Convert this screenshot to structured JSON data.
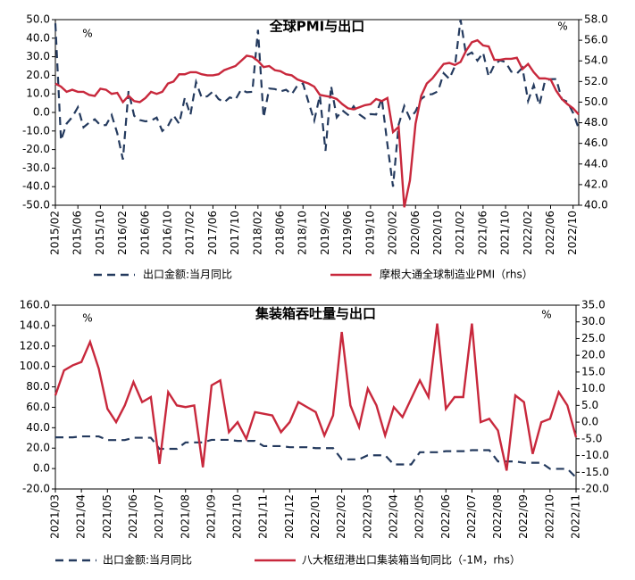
{
  "chart_data": [
    {
      "type": "line",
      "title": "全球PMI与出口",
      "annotations": [
        "%",
        "%"
      ],
      "categories": [
        "2015/02",
        null,
        null,
        null,
        "2015/06",
        null,
        null,
        null,
        "2015/10",
        null,
        null,
        null,
        "2016/02",
        null,
        null,
        null,
        "2016/06",
        null,
        null,
        null,
        "2016/10",
        null,
        null,
        null,
        "2017/02",
        null,
        null,
        null,
        "2017/06",
        null,
        null,
        null,
        "2017/10",
        null,
        null,
        null,
        "2018/02",
        null,
        null,
        null,
        "2018/06",
        null,
        null,
        null,
        "2018/10",
        null,
        null,
        null,
        "2019/02",
        null,
        null,
        null,
        "2019/06",
        null,
        null,
        null,
        "2019/10",
        null,
        null,
        null,
        "2020/02",
        null,
        null,
        null,
        "2020/06",
        null,
        null,
        null,
        "2020/10",
        null,
        null,
        null,
        "2021/02",
        null,
        null,
        null,
        "2021/06",
        null,
        null,
        null,
        "2021/10",
        null,
        null,
        null,
        "2022/02",
        null,
        null,
        null,
        "2022/06",
        null,
        null,
        null,
        "2022/10",
        null
      ],
      "series": [
        {
          "name": "出口金额:当月同比",
          "color": "#243a5e",
          "dash": true,
          "axis": "y",
          "values": [
            48,
            -15,
            -6,
            -2.5,
            2.8,
            -8,
            -5.5,
            -3.7,
            -6.9,
            -6.8,
            -1.4,
            -11.2,
            -25.4,
            11.5,
            -1.8,
            -4.1,
            -4.8,
            -4.4,
            -2.8,
            -10,
            -7.3,
            -1.6,
            -6.1,
            7.9,
            -1.3,
            16.4,
            8,
            8.7,
            11.3,
            7.2,
            5.5,
            8.1,
            6.9,
            12.3,
            10.9,
            11.1,
            44.5,
            -2.7,
            12.9,
            12.6,
            11.3,
            12.2,
            9.8,
            14.5,
            15.6,
            5.4,
            -4.4,
            9.1,
            -20.7,
            14.2,
            -2.7,
            1.1,
            -1.3,
            3.3,
            -1,
            -3.2,
            -0.9,
            -1.1,
            7.6,
            -17.2,
            -40,
            -6.6,
            3.5,
            -3.3,
            0.5,
            7.2,
            9.5,
            9.9,
            11.4,
            21.1,
            18.1,
            24.9,
            50,
            30.6,
            32.3,
            27.9,
            32.2,
            19.3,
            25.6,
            28.1,
            27.1,
            22,
            20.9,
            24.1,
            6.2,
            14.7,
            3.9,
            16.9,
            17.9,
            18,
            7.1,
            5.7,
            -0.3,
            -8.7
          ]
        },
        {
          "name": "摩根大通全球制造业PMI（rhs）",
          "color": "#c8283c",
          "dash": false,
          "axis": "y2",
          "values": [
            51.8,
            51.5,
            51.0,
            51.2,
            51.0,
            51.0,
            50.7,
            50.6,
            51.3,
            51.2,
            50.8,
            50.9,
            50.0,
            50.6,
            50.1,
            50.0,
            50.4,
            51.0,
            50.8,
            51.0,
            51.8,
            52.0,
            52.7,
            52.7,
            52.9,
            52.9,
            52.7,
            52.6,
            52.6,
            52.7,
            53.1,
            53.3,
            53.5,
            54.0,
            54.5,
            54.4,
            54.0,
            53.4,
            53.5,
            53.1,
            53.0,
            52.7,
            52.6,
            52.2,
            52.0,
            51.8,
            51.5,
            50.7,
            50.6,
            50.5,
            50.3,
            49.8,
            49.4,
            49.3,
            49.5,
            49.7,
            49.8,
            50.3,
            50.1,
            50.4,
            47.1,
            47.6,
            39.8,
            42.4,
            47.9,
            50.6,
            51.8,
            52.3,
            53.0,
            53.7,
            53.8,
            53.6,
            53.9,
            55.0,
            55.8,
            56.0,
            55.5,
            55.4,
            54.1,
            54.1,
            54.2,
            54.2,
            54.3,
            53.2,
            53.7,
            52.9,
            52.3,
            52.3,
            52.2,
            51.1,
            50.3,
            49.8,
            49.4,
            48.8
          ]
        }
      ],
      "ylim": [
        -50,
        50
      ],
      "yticks": [
        {
          "value": -50,
          "label": "-50.0"
        },
        {
          "value": -40,
          "label": "-40.0"
        },
        {
          "value": -30,
          "label": "-30.0"
        },
        {
          "value": -20,
          "label": "-20.0"
        },
        {
          "value": -10,
          "label": "-10.0"
        },
        {
          "value": 0,
          "label": "0.0"
        },
        {
          "value": 10,
          "label": "10.0"
        },
        {
          "value": 20,
          "label": "20.0"
        },
        {
          "value": 30,
          "label": "30.0"
        },
        {
          "value": 40,
          "label": "40.0"
        },
        {
          "value": 50,
          "label": "50.0"
        }
      ],
      "y2lim": [
        40,
        58
      ],
      "y2ticks": [
        {
          "value": 40,
          "label": "40.0"
        },
        {
          "value": 42,
          "label": "42.0"
        },
        {
          "value": 44,
          "label": "44.0"
        },
        {
          "value": 46,
          "label": "46.0"
        },
        {
          "value": 48,
          "label": "48.0"
        },
        {
          "value": 50,
          "label": "50.0"
        },
        {
          "value": 52,
          "label": "52.0"
        },
        {
          "value": 54,
          "label": "54.0"
        },
        {
          "value": 56,
          "label": "56.0"
        },
        {
          "value": 58,
          "label": "58.0"
        }
      ]
    },
    {
      "type": "line",
      "title": "集装箱吞吐量与出口",
      "annotations": [
        "%",
        "%"
      ],
      "categories": [
        "2021/03",
        null,
        null,
        "2021/04",
        null,
        null,
        "2021/05",
        null,
        null,
        "2021/06",
        null,
        null,
        "2021/07",
        null,
        null,
        "2021/08",
        null,
        null,
        "2021/09",
        null,
        null,
        "2021/10",
        null,
        null,
        "2021/11",
        null,
        null,
        "2021/12",
        null,
        null,
        "2022/01",
        null,
        null,
        "2022/02",
        null,
        null,
        "2022/03",
        null,
        null,
        "2022/04",
        null,
        null,
        "2022/05",
        null,
        null,
        "2022/06",
        null,
        null,
        "2022/07",
        null,
        null,
        "2022/08",
        null,
        null,
        "2022/09",
        null,
        null,
        "2022/10",
        null,
        null,
        "2022/11"
      ],
      "series": [
        {
          "name": "出口金额:当月同比",
          "color": "#243a5e",
          "dash": true,
          "axis": "y",
          "values": [
            30.6,
            30.6,
            30.6,
            31.5,
            31.5,
            31.5,
            27.9,
            27.9,
            27.9,
            30.2,
            30.2,
            30.2,
            19.3,
            19.3,
            19.3,
            25.6,
            25.6,
            25.6,
            28.1,
            28.1,
            28.1,
            27.1,
            27.1,
            27.1,
            22,
            22,
            22,
            20.9,
            20.9,
            20.9,
            20,
            20,
            20,
            9,
            9,
            9,
            13,
            13,
            13,
            4,
            4,
            4,
            16,
            16,
            16,
            17,
            17,
            17,
            18,
            18,
            18,
            7,
            7,
            7,
            5.7,
            5.7,
            5.7,
            -0.3,
            -0.3,
            -0.3,
            -8.7
          ]
        },
        {
          "name": "八大枢纽港出口集装箱当旬同比（-1M，rhs）",
          "color": "#c8283c",
          "dash": false,
          "axis": "y2",
          "values": [
            8,
            15.5,
            17,
            18,
            24,
            16,
            4,
            0,
            5,
            12,
            6,
            7.5,
            -12.5,
            9,
            5,
            4.5,
            5,
            -13.5,
            11,
            12.5,
            -3,
            0,
            -5,
            3,
            2.5,
            2,
            -3,
            0,
            6,
            4.5,
            3,
            -4,
            2,
            27,
            5,
            -1.5,
            10,
            5,
            -4,
            4.5,
            1.5,
            7,
            12.5,
            7.5,
            29.5,
            4,
            7.5,
            7.5,
            29.5,
            0,
            1,
            -2.5,
            -14.5,
            8,
            6,
            -9.5,
            0,
            1,
            9,
            5,
            -4.5
          ]
        }
      ],
      "ylim": [
        -20,
        160
      ],
      "yticks": [
        {
          "value": -20,
          "label": "-20.0"
        },
        {
          "value": 0,
          "label": "0.0"
        },
        {
          "value": 20,
          "label": "20.0"
        },
        {
          "value": 40,
          "label": "40.0"
        },
        {
          "value": 60,
          "label": "60.0"
        },
        {
          "value": 80,
          "label": "80.0"
        },
        {
          "value": 100,
          "label": "100.0"
        },
        {
          "value": 120,
          "label": "120.0"
        },
        {
          "value": 140,
          "label": "140.0"
        },
        {
          "value": 160,
          "label": "160.0"
        }
      ],
      "y2lim": [
        -20,
        35
      ],
      "y2ticks": [
        {
          "value": -20,
          "label": "-20.0"
        },
        {
          "value": -15,
          "label": "-15.0"
        },
        {
          "value": -10,
          "label": "-10.0"
        },
        {
          "value": -5,
          "label": "-5.0"
        },
        {
          "value": 0,
          "label": "0.0"
        },
        {
          "value": 5,
          "label": "5.0"
        },
        {
          "value": 10,
          "label": "10.0"
        },
        {
          "value": 15,
          "label": "15.0"
        },
        {
          "value": 20,
          "label": "20.0"
        },
        {
          "value": 25,
          "label": "25.0"
        },
        {
          "value": 30,
          "label": "30.0"
        },
        {
          "value": 35,
          "label": "35.0"
        }
      ]
    }
  ]
}
